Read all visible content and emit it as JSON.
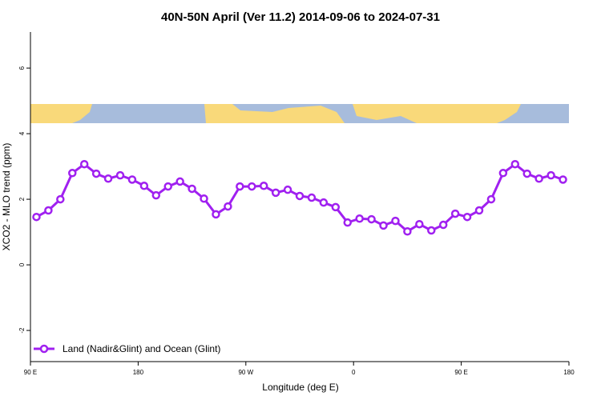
{
  "chart_data": {
    "type": "line",
    "title": "40N-50N April (Ver 11.2)   2014-09-06 to 2024-07-31",
    "xlabel": "Longitude (deg E)",
    "ylabel": "XCO2 - MLO trend (ppm)",
    "x": [
      95,
      105,
      115,
      125,
      135,
      145,
      155,
      165,
      175,
      185,
      195,
      205,
      215,
      225,
      235,
      245,
      255,
      265,
      275,
      285,
      295,
      305,
      315,
      325,
      335,
      345,
      355,
      365,
      375,
      385,
      395,
      405,
      415,
      425,
      435,
      445,
      455,
      465,
      475,
      485,
      495,
      505,
      515,
      525,
      535
    ],
    "series": [
      {
        "name": "Land (Nadir&Glint) and Ocean (Glint)",
        "color": "#a020f0",
        "values": [
          1.46,
          1.66,
          2.0,
          2.8,
          3.07,
          2.78,
          2.63,
          2.73,
          2.6,
          2.41,
          2.12,
          2.39,
          2.54,
          2.32,
          2.02,
          1.54,
          1.78,
          2.39,
          2.39,
          2.41,
          2.2,
          2.29,
          2.1,
          2.05,
          1.9,
          1.76,
          1.29,
          1.41,
          1.39,
          1.2,
          1.34,
          1.02,
          1.24,
          1.05,
          1.22,
          1.56,
          1.46,
          1.66,
          2.0,
          2.8,
          3.07,
          2.78,
          2.63,
          2.73,
          2.6
        ]
      }
    ],
    "xlim": [
      90,
      540
    ],
    "xticks": [
      {
        "value": 90,
        "label": "90 E"
      },
      180,
      {
        "value": 270,
        "label": "90 W"
      },
      {
        "value": 360,
        "label": "0"
      },
      {
        "value": 450,
        "label": "90 E"
      },
      {
        "value": 540,
        "label": "180"
      }
    ],
    "ylim": [
      -2.95,
      7.1
    ],
    "yticks": [
      -2,
      0,
      2,
      4,
      6
    ],
    "legend": "bottom-left"
  }
}
